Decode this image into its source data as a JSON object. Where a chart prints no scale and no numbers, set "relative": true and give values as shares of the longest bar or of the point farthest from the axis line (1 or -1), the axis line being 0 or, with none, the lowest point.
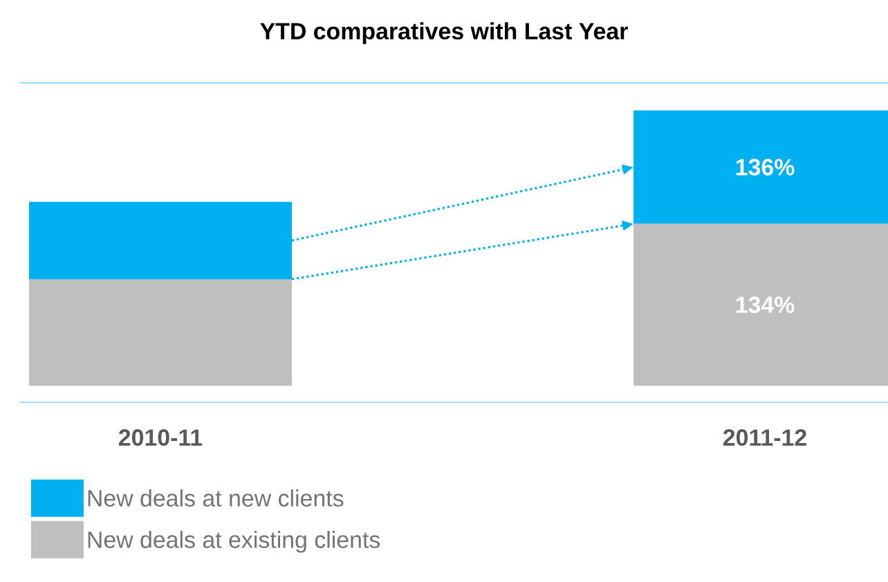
{
  "chart_data": {
    "type": "bar",
    "title": "YTD comparatives with Last Year",
    "categories": [
      "2010-11",
      "2011-12"
    ],
    "stacked": true,
    "relative": true,
    "legend": "bottom left",
    "series": [
      {
        "name": "New deals at existing clients",
        "color": "#bfbfbf",
        "values": [
          0.387,
          0.588
        ]
      },
      {
        "name": "New deals at new clients",
        "color": "#00b0f0",
        "values": [
          0.281,
          0.412
        ]
      }
    ],
    "annotations": [
      "136%",
      "134%"
    ]
  }
}
